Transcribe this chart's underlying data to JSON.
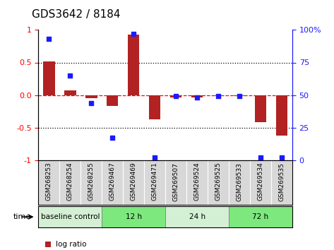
{
  "title": "GDS3642 / 8184",
  "samples": [
    "GSM268253",
    "GSM268254",
    "GSM268255",
    "GSM269467",
    "GSM269469",
    "GSM269471",
    "GSM269507",
    "GSM269524",
    "GSM269525",
    "GSM269533",
    "GSM269534",
    "GSM269535"
  ],
  "log_ratio": [
    0.52,
    0.07,
    -0.05,
    -0.17,
    0.93,
    -0.38,
    -0.04,
    -0.04,
    -0.02,
    -0.02,
    -0.42,
    -0.62
  ],
  "percentile_rank": [
    93,
    65,
    44,
    17,
    97,
    2,
    49,
    48,
    49,
    49,
    2,
    2
  ],
  "bar_color": "#b22222",
  "dot_color": "#1a1aff",
  "groups": [
    {
      "label": "baseline control",
      "start": 0,
      "end": 3,
      "color": "#d4f0d4"
    },
    {
      "label": "12 h",
      "start": 3,
      "end": 6,
      "color": "#7de87d"
    },
    {
      "label": "24 h",
      "start": 6,
      "end": 9,
      "color": "#d4f0d4"
    },
    {
      "label": "72 h",
      "start": 9,
      "end": 12,
      "color": "#7de87d"
    }
  ],
  "ylim_left": [
    -1,
    1
  ],
  "ylim_right": [
    0,
    100
  ],
  "yticks_left": [
    -1,
    -0.5,
    0,
    0.5,
    1
  ],
  "yticks_right": [
    0,
    25,
    50,
    75,
    100
  ],
  "hlines": [
    0.5,
    -0.5
  ],
  "bar_width": 0.55
}
